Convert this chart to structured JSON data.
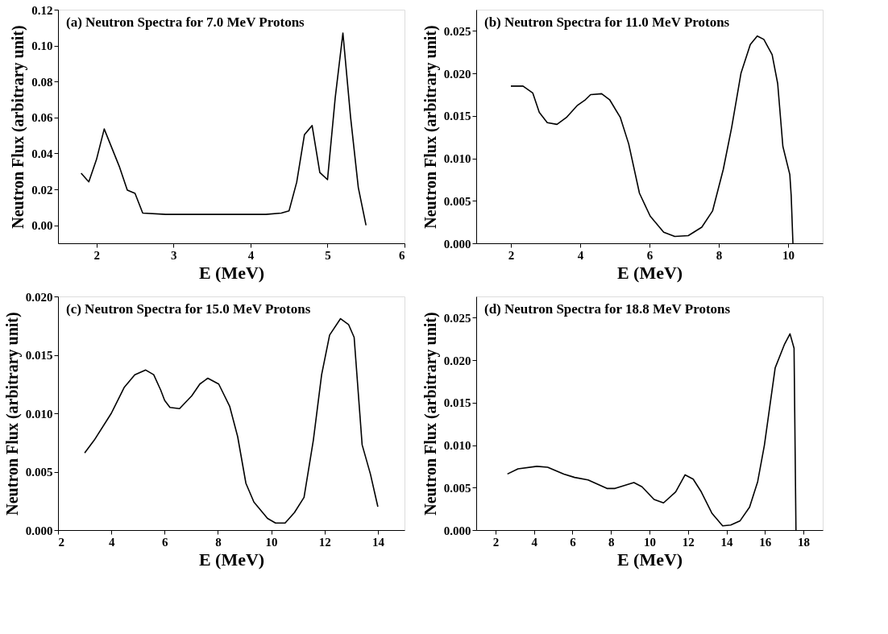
{
  "chart_data": [
    {
      "type": "line",
      "title": "(a)  Neutron Spectra for 7.0 MeV Protons",
      "xlabel": "E (MeV)",
      "ylabel": "Neutron Flux (arbitrary unit)",
      "xlim": [
        1.5,
        6
      ],
      "xticks": [
        2,
        3,
        4,
        5,
        6
      ],
      "ylim": [
        -0.01,
        0.12
      ],
      "yticks": [
        {
          "value": 0,
          "label": "0.00"
        },
        {
          "value": 0.02,
          "label": "0.02"
        },
        {
          "value": 0.04,
          "label": "0.04"
        },
        {
          "value": 0.06,
          "label": "0.06"
        },
        {
          "value": 0.08,
          "label": "0.08"
        },
        {
          "value": 0.1,
          "label": "0.10"
        },
        {
          "value": 0.12,
          "label": "0.12"
        }
      ],
      "grid": false,
      "legend": false,
      "series": [
        {
          "color": "#000000",
          "x": [
            1.8,
            1.9,
            2.0,
            2.1,
            2.3,
            2.4,
            2.5,
            2.6,
            2.9,
            4.2,
            4.4,
            4.5,
            4.6,
            4.7,
            4.8,
            4.9,
            5.0,
            5.1,
            5.2,
            5.3,
            5.4,
            5.5
          ],
          "values": [
            0.029,
            0.0242,
            0.0367,
            0.0536,
            0.0323,
            0.0196,
            0.0178,
            0.0068,
            0.0061,
            0.0061,
            0.0068,
            0.008,
            0.024,
            0.0504,
            0.0555,
            0.0294,
            0.0254,
            0.071,
            0.107,
            0.06,
            0.021,
            0.0
          ]
        }
      ]
    },
    {
      "type": "line",
      "title": "(b)  Neutron Spectra for 11.0 MeV Protons",
      "xlabel": "E (MeV)",
      "ylabel": "Neutron Flux (arbitrary unit)",
      "xlim": [
        1,
        11
      ],
      "xticks": [
        2,
        4,
        6,
        8,
        10
      ],
      "ylim": [
        0,
        0.0275
      ],
      "yticks": [
        {
          "value": 0,
          "label": "0.000"
        },
        {
          "value": 0.005,
          "label": "0.005"
        },
        {
          "value": 0.01,
          "label": "0.010"
        },
        {
          "value": 0.015,
          "label": "0.015"
        },
        {
          "value": 0.02,
          "label": "0.020"
        },
        {
          "value": 0.025,
          "label": "0.025"
        }
      ],
      "grid": false,
      "legend": false,
      "series": [
        {
          "color": "#000000",
          "x": [
            2.0,
            2.35,
            2.63,
            2.82,
            3.05,
            3.33,
            3.6,
            3.91,
            4.15,
            4.3,
            4.62,
            4.85,
            5.16,
            5.4,
            5.71,
            6.02,
            6.41,
            6.73,
            7.12,
            7.51,
            7.82,
            8.13,
            8.37,
            8.64,
            8.91,
            9.11,
            9.3,
            9.54,
            9.7,
            9.85,
            10.05,
            10.09,
            10.14
          ],
          "values": [
            0.0185,
            0.0185,
            0.0177,
            0.0154,
            0.0142,
            0.014,
            0.0148,
            0.0162,
            0.0169,
            0.0175,
            0.0176,
            0.0169,
            0.0148,
            0.0117,
            0.0059,
            0.0032,
            0.0013,
            0.0008,
            0.0009,
            0.0019,
            0.0038,
            0.0087,
            0.0136,
            0.02,
            0.0234,
            0.0244,
            0.024,
            0.0222,
            0.0188,
            0.0114,
            0.0081,
            0.0056,
            0.0
          ]
        }
      ]
    },
    {
      "type": "line",
      "title": "(c)  Neutron Spectra for 15.0 MeV Protons",
      "xlabel": "E (MeV)",
      "ylabel": "Neutron Flux (arbitrary unit)",
      "xlim": [
        2,
        15
      ],
      "xticks": [
        2,
        4,
        6,
        8,
        10,
        12,
        14
      ],
      "ylim": [
        0,
        0.02
      ],
      "yticks": [
        {
          "value": 0,
          "label": "0.000"
        },
        {
          "value": 0.005,
          "label": "0.005"
        },
        {
          "value": 0.01,
          "label": "0.010"
        },
        {
          "value": 0.015,
          "label": "0.015"
        },
        {
          "value": 0.02,
          "label": "0.020"
        }
      ],
      "grid": false,
      "legend": false,
      "series": [
        {
          "color": "#000000",
          "x": [
            3.0,
            3.36,
            4.0,
            4.48,
            4.88,
            5.29,
            5.59,
            5.85,
            6.0,
            6.2,
            6.56,
            7.02,
            7.32,
            7.62,
            8.03,
            8.44,
            8.74,
            9.05,
            9.35,
            9.86,
            10.16,
            10.52,
            10.87,
            11.23,
            11.58,
            11.89,
            12.19,
            12.6,
            12.9,
            13.11,
            13.41,
            13.72,
            14.0
          ],
          "values": [
            0.0066,
            0.0077,
            0.01,
            0.0122,
            0.0133,
            0.0137,
            0.0133,
            0.012,
            0.0111,
            0.0105,
            0.0104,
            0.0115,
            0.0125,
            0.013,
            0.0125,
            0.0106,
            0.008,
            0.004,
            0.0024,
            0.001,
            0.0006,
            0.0006,
            0.0015,
            0.0028,
            0.0077,
            0.0133,
            0.0167,
            0.0181,
            0.0176,
            0.0165,
            0.0073,
            0.0048,
            0.002
          ]
        }
      ]
    },
    {
      "type": "line",
      "title": "(d)  Neutron Spectra for 18.8 MeV Protons",
      "xlabel": "E (MeV)",
      "ylabel": "Neutron Flux (arbitrary unit)",
      "xlim": [
        1,
        19
      ],
      "xticks": [
        2,
        4,
        6,
        8,
        10,
        12,
        14,
        16,
        18
      ],
      "ylim": [
        0,
        0.0275
      ],
      "yticks": [
        {
          "value": 0,
          "label": "0.000"
        },
        {
          "value": 0.005,
          "label": "0.005"
        },
        {
          "value": 0.01,
          "label": "0.010"
        },
        {
          "value": 0.015,
          "label": "0.015"
        },
        {
          "value": 0.02,
          "label": "0.020"
        },
        {
          "value": 0.025,
          "label": "0.025"
        }
      ],
      "grid": false,
      "legend": false,
      "series": [
        {
          "color": "#000000",
          "x": [
            2.62,
            3.17,
            4.15,
            4.71,
            5.55,
            6.11,
            6.81,
            7.79,
            8.21,
            9.19,
            9.61,
            10.24,
            10.73,
            11.36,
            11.85,
            12.27,
            12.69,
            13.24,
            13.8,
            14.22,
            14.71,
            15.2,
            15.62,
            15.97,
            16.53,
            17.02,
            17.3,
            17.51,
            17.61
          ],
          "values": [
            0.0066,
            0.0072,
            0.0075,
            0.0074,
            0.0066,
            0.0062,
            0.0059,
            0.0049,
            0.0049,
            0.0056,
            0.0051,
            0.0036,
            0.0032,
            0.0045,
            0.0065,
            0.006,
            0.0045,
            0.002,
            0.0005,
            0.0006,
            0.0011,
            0.0027,
            0.0057,
            0.01,
            0.0191,
            0.0219,
            0.0231,
            0.0214,
            0.0
          ]
        }
      ]
    }
  ]
}
